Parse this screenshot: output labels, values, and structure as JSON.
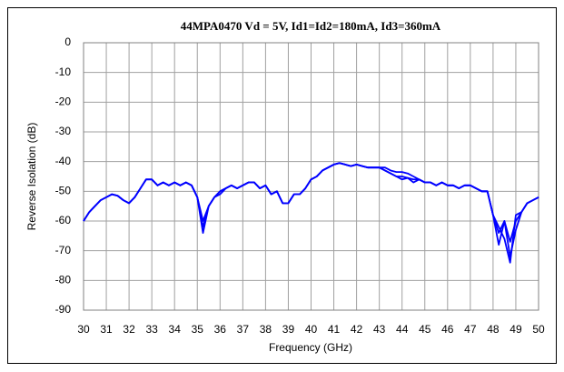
{
  "chart_data": {
    "type": "line",
    "title": "44MPA0470 Vd = 5V, Id1=Id2=180mA, Id3=360mA",
    "xlabel": "Frequency (GHz)",
    "ylabel": "Reverse Isolation (dB)",
    "xlim": [
      30,
      50
    ],
    "ylim": [
      -90,
      0
    ],
    "xticks": [
      30,
      31,
      32,
      33,
      34,
      35,
      36,
      37,
      38,
      39,
      40,
      41,
      42,
      43,
      44,
      45,
      46,
      47,
      48,
      49,
      50
    ],
    "yticks": [
      0,
      -10,
      -20,
      -30,
      -40,
      -50,
      -60,
      -70,
      -80,
      -90
    ],
    "grid": true,
    "x": [
      30,
      30.25,
      30.5,
      30.75,
      31,
      31.25,
      31.5,
      31.75,
      32,
      32.25,
      32.5,
      32.75,
      33,
      33.25,
      33.5,
      33.75,
      34,
      34.25,
      34.5,
      34.75,
      35,
      35.25,
      35.5,
      35.75,
      36,
      36.25,
      36.5,
      36.75,
      37,
      37.25,
      37.5,
      37.75,
      38,
      38.25,
      38.5,
      38.75,
      39,
      39.25,
      39.5,
      39.75,
      40,
      40.25,
      40.5,
      40.75,
      41,
      41.25,
      41.5,
      41.75,
      42,
      42.25,
      42.5,
      42.75,
      43,
      43.25,
      43.5,
      43.75,
      44,
      44.25,
      44.5,
      44.75,
      45,
      45.25,
      45.5,
      45.75,
      46,
      46.25,
      46.5,
      46.75,
      47,
      47.25,
      47.5,
      47.75,
      48,
      48.25,
      48.5,
      48.75,
      49,
      49.25,
      49.5,
      49.75,
      50
    ],
    "series": [
      {
        "color": "#0000ff",
        "values": [
          -60,
          -57,
          -55,
          -53,
          -52,
          -51,
          -51.5,
          -53,
          -54,
          -52,
          -49,
          -46,
          -46,
          -48,
          -47,
          -48,
          -47,
          -48,
          -47,
          -48,
          -52,
          -62,
          -55,
          -52,
          -50,
          -49,
          -48,
          -49,
          -48,
          -47,
          -47,
          -49,
          -48,
          -51,
          -50,
          -54,
          -54,
          -51,
          -51,
          -49,
          -46,
          -45,
          -43,
          -42,
          -41,
          -40.5,
          -41,
          -41.5,
          -41,
          -41.5,
          -42,
          -42,
          -42,
          -43,
          -44,
          -45,
          -45,
          -45.5,
          -46,
          -46,
          -47,
          -47,
          -48,
          -47,
          -48,
          -48,
          -49,
          -48,
          -48,
          -49,
          -50,
          -50,
          -58,
          -64,
          -60,
          -67,
          -60,
          -57,
          -54,
          -53,
          -52
        ]
      },
      {
        "color": "#0000ff",
        "values": [
          -60,
          -57,
          -55,
          -53,
          -52,
          -51,
          -51.5,
          -53,
          -54,
          -52,
          -49,
          -46,
          -46,
          -48,
          -47,
          -48,
          -47,
          -48,
          -47,
          -48,
          -52,
          -64,
          -55,
          -52,
          -50,
          -49,
          -48,
          -49,
          -48,
          -47,
          -47,
          -49,
          -48,
          -51,
          -50,
          -54,
          -54,
          -51,
          -51,
          -49,
          -46,
          -45,
          -43,
          -42,
          -41,
          -40.5,
          -41,
          -41.5,
          -41,
          -41.5,
          -42,
          -42,
          -42,
          -42,
          -43,
          -43.5,
          -43.5,
          -44,
          -45,
          -46,
          -47,
          -47,
          -48,
          -47,
          -48,
          -48,
          -49,
          -48,
          -48,
          -49,
          -50,
          -50,
          -58,
          -68,
          -60,
          -72,
          -63,
          -57,
          -54,
          -53,
          -52
        ]
      },
      {
        "color": "#0000ff",
        "values": [
          -60,
          -57,
          -55,
          -53,
          -52,
          -51,
          -51.5,
          -53,
          -54,
          -52,
          -49,
          -46,
          -46,
          -48,
          -47,
          -48,
          -47,
          -48,
          -47,
          -48,
          -52,
          -60,
          -55,
          -52,
          -51,
          -49,
          -48,
          -49,
          -48,
          -47,
          -47,
          -49,
          -48,
          -51,
          -50,
          -54,
          -54,
          -51,
          -51,
          -49,
          -46,
          -45,
          -43,
          -42,
          -41,
          -40.5,
          -41,
          -41.5,
          -41,
          -41.5,
          -42,
          -42,
          -42,
          -43,
          -44,
          -45,
          -46,
          -45.5,
          -47,
          -46,
          -47,
          -47,
          -48,
          -47,
          -48,
          -48,
          -49,
          -48,
          -48,
          -49,
          -50,
          -50,
          -58,
          -62,
          -66,
          -74,
          -58,
          -57,
          -54,
          -53,
          -52
        ]
      }
    ]
  }
}
